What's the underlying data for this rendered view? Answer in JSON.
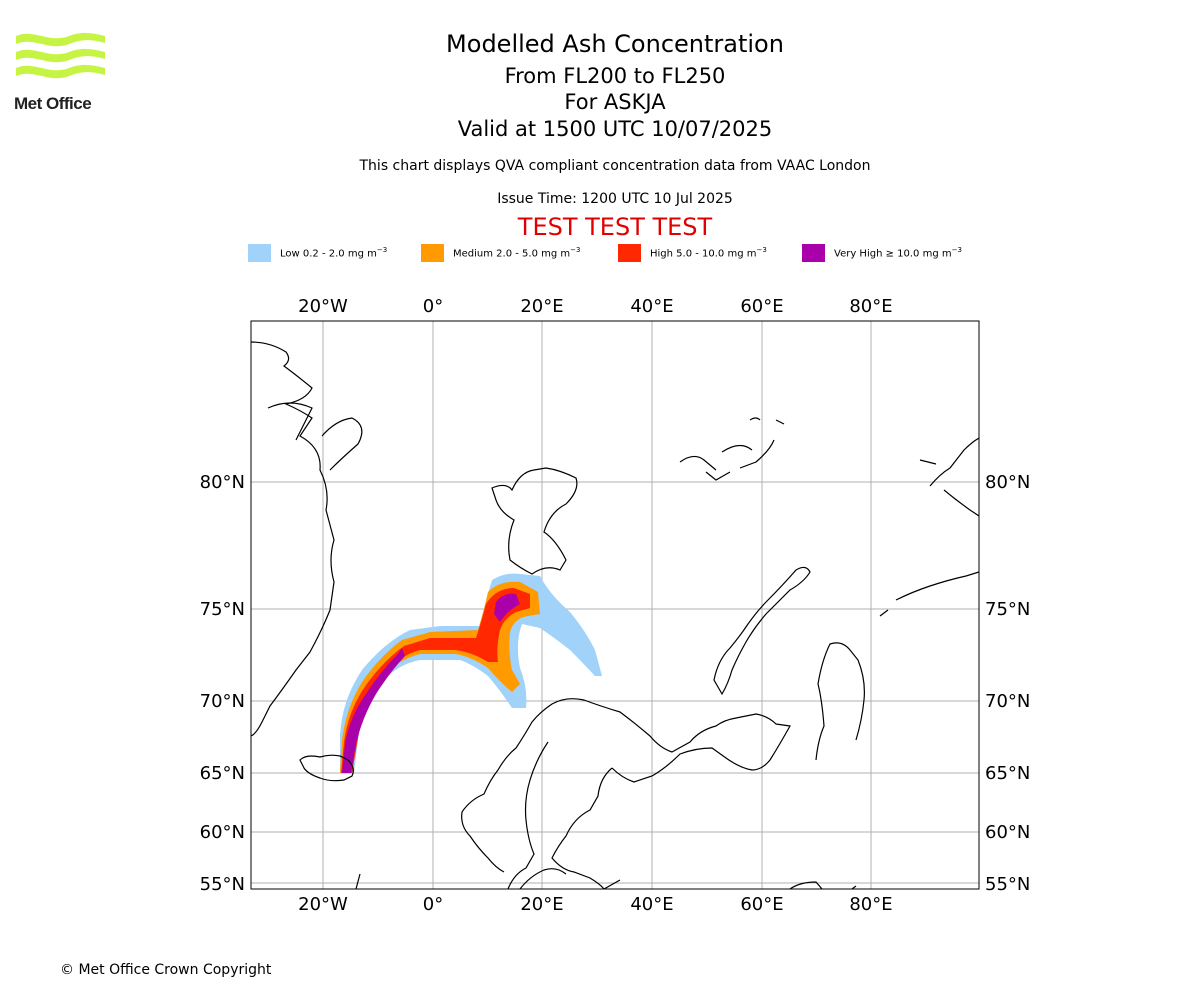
{
  "header": {
    "logo_text": "Met Office",
    "title": "Modelled Ash Concentration",
    "level_range": "From FL200 to FL250",
    "volcano": "For ASKJA",
    "valid_time": "Valid at 1500 UTC 10/07/2025",
    "description": "This chart displays QVA compliant concentration data from VAAC London",
    "issue_time": "Issue Time: 1200 UTC 10 Jul 2025",
    "test_banner": "TEST TEST TEST"
  },
  "legend": [
    {
      "label": "Low 0.2 - 2.0 mg m",
      "color": "#a0d2fa"
    },
    {
      "label": "Medium 2.0 - 5.0 mg m",
      "color": "#ff9a00"
    },
    {
      "label": "High 5.0 - 10.0 mg m",
      "color": "#ff2800"
    },
    {
      "label": "Very High ≥ 10.0 mg m",
      "color": "#aa00aa"
    }
  ],
  "legend_unit_exp": "−3",
  "map": {
    "lon_ticks": [
      "20°W",
      "0°",
      "20°E",
      "40°E",
      "60°E",
      "80°E"
    ],
    "lat_ticks": [
      "80°N",
      "75°N",
      "70°N",
      "65°N",
      "60°N",
      "55°N"
    ],
    "logo_color": "#c6f442",
    "grid_color": "#b0b0b0"
  },
  "footer": {
    "copyright": "© Met Office Crown Copyright"
  }
}
